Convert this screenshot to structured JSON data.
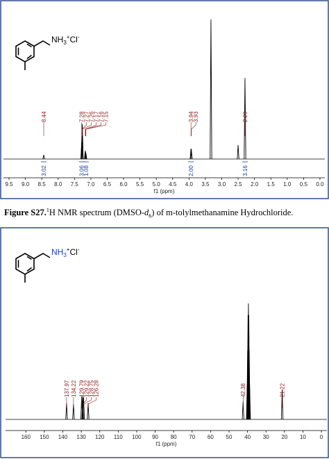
{
  "chart_data": [
    {
      "type": "spectrum",
      "molecule": {
        "atom": "NH",
        "sub": "3",
        "charge": "+",
        "counter": "Cl",
        "counter_charge": "-"
      },
      "xlabel": "f1 (ppm)",
      "xlim": [
        9.67,
        -0.15
      ],
      "xticks": [
        9.5,
        {
          "value": 9,
          "label": "9.0"
        },
        8.5,
        {
          "value": 8,
          "label": "8.0"
        },
        7.5,
        {
          "value": 7,
          "label": "7.0"
        },
        6.5,
        {
          "value": 6,
          "label": "6.0"
        },
        5.5,
        {
          "value": 5,
          "label": "5.0"
        },
        4.5,
        {
          "value": 4,
          "label": "4.0"
        },
        3.5,
        {
          "value": 3,
          "label": "3.0"
        },
        2.5,
        {
          "value": 2,
          "label": "2.0"
        },
        1.5,
        {
          "value": 1,
          "label": "1.0"
        },
        0.5,
        {
          "value": 0,
          "label": "0.0"
        }
      ],
      "peaks": [
        {
          "ppm": 8.44,
          "height": 0.03
        },
        {
          "ppm": 7.28,
          "height": 0.12
        },
        {
          "ppm": 7.27,
          "height": 0.2
        },
        {
          "ppm": 7.26,
          "height": 0.25
        },
        {
          "ppm": 7.17,
          "height": 0.06
        },
        {
          "ppm": 7.16,
          "height": 0.05
        },
        {
          "ppm": 7.15,
          "height": 0.04
        },
        {
          "ppm": 3.94,
          "height": 0.075
        },
        {
          "ppm": 3.93,
          "height": 0.07
        },
        {
          "ppm": 3.33,
          "height": 1.0
        },
        {
          "ppm": 2.5,
          "height": 0.1
        },
        {
          "ppm": 2.29,
          "height": 0.58
        }
      ],
      "peak_labels": [
        8.44,
        7.28,
        7.27,
        7.26,
        7.17,
        7.16,
        7.15,
        3.94,
        3.93,
        2.29
      ],
      "integrals": [
        {
          "ppm": 8.44,
          "value": 3.02
        },
        {
          "ppm": 7.28,
          "value": 3.06
        },
        {
          "ppm": 7.15,
          "value": 1.08
        },
        {
          "ppm": 3.94,
          "value": 2,
          "label": "2.00"
        },
        {
          "ppm": 2.29,
          "value": 3.16
        }
      ]
    },
    {
      "type": "spectrum",
      "molecule": {
        "atom": "NH",
        "sub": "3",
        "charge": "+",
        "counter": "Cl",
        "counter_charge": "-"
      },
      "xlabel": "f1 (ppm)",
      "xlim": [
        171,
        -3
      ],
      "xticks": [
        160,
        150,
        140,
        130,
        120,
        110,
        100,
        90,
        80,
        70,
        60,
        50,
        40,
        30,
        20,
        10,
        0
      ],
      "peaks": [
        {
          "ppm": 137.97,
          "height": 0.14
        },
        {
          "ppm": 134.22,
          "height": 0.13
        },
        {
          "ppm": 129.79,
          "height": 0.2
        },
        {
          "ppm": 129.22,
          "height": 0.2
        },
        {
          "ppm": 128.75,
          "height": 0.19
        },
        {
          "ppm": 126.28,
          "height": 0.14
        },
        {
          "ppm": 42.38,
          "height": 0.155
        },
        {
          "ppm": 40.13,
          "height": 0.3
        },
        {
          "ppm": 39.92,
          "height": 0.6
        },
        {
          "ppm": 39.71,
          "height": 0.9
        },
        {
          "ppm": 39.5,
          "height": 1.0
        },
        {
          "ppm": 39.29,
          "height": 0.9
        },
        {
          "ppm": 39.08,
          "height": 0.6
        },
        {
          "ppm": 38.87,
          "height": 0.3
        },
        {
          "ppm": 21.22,
          "height": 0.26
        }
      ],
      "peak_labels": [
        137.97,
        134.22,
        129.79,
        129.22,
        128.75,
        126.28,
        42.38,
        21.22
      ],
      "integrals": []
    }
  ],
  "caption": {
    "label": "Figure S27.",
    "sup": "1",
    "text1": "H NMR spectrum (DMSO-",
    "italic": "d",
    "sub": "6",
    "text2": ") of m-tolylmethanamine Hydrochloride."
  }
}
